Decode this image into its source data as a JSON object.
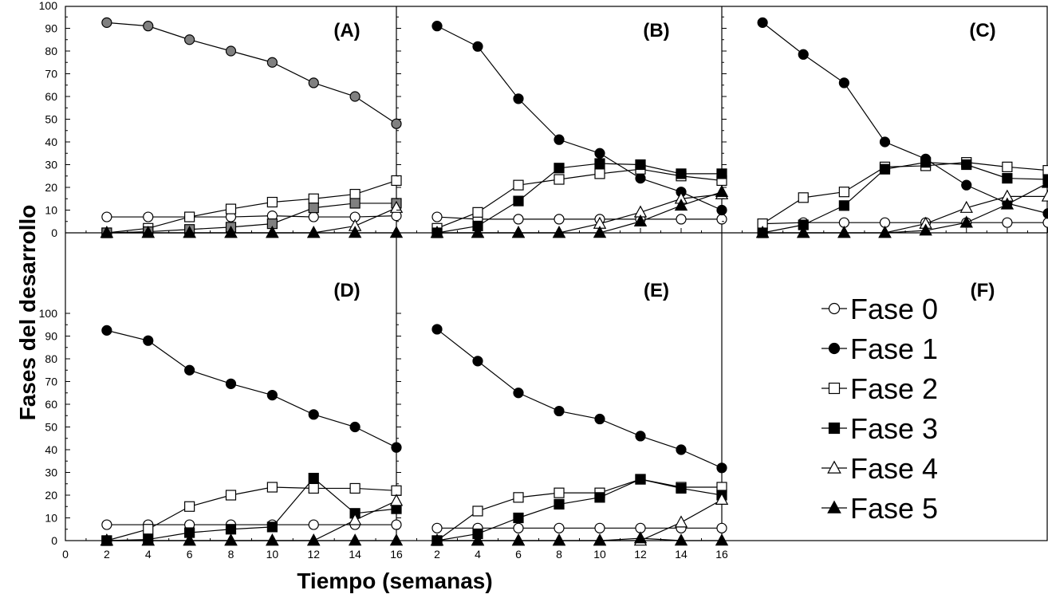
{
  "chart_data": {
    "type": "line",
    "title": "",
    "xlabel": "Tiempo (semanas)",
    "ylabel": "Fases del desarrollo",
    "xlim": [
      0,
      16
    ],
    "ylim": [
      0,
      100
    ],
    "x_ticks": [
      "0",
      "2",
      "4",
      "6",
      "8",
      "10",
      "12",
      "14",
      "16"
    ],
    "y_ticks": [
      "0",
      "10",
      "20",
      "30",
      "40",
      "50",
      "60",
      "70",
      "80",
      "90",
      "100"
    ],
    "x": [
      2,
      4,
      6,
      8,
      10,
      12,
      14,
      16
    ],
    "legend": [
      {
        "name": "Fase 0",
        "marker": "circle",
        "fill": "#ffffff"
      },
      {
        "name": "Fase 1",
        "marker": "circle",
        "fill": "#000000"
      },
      {
        "name": "Fase 2",
        "marker": "square",
        "fill": "#ffffff"
      },
      {
        "name": "Fase 3",
        "marker": "square",
        "fill": "#000000"
      },
      {
        "name": "Fase 4",
        "marker": "triangle",
        "fill": "#ffffff"
      },
      {
        "name": "Fase 5",
        "marker": "triangle",
        "fill": "#000000"
      }
    ],
    "legend_panel": "(F)",
    "panels": [
      {
        "label": "(A)",
        "series": [
          {
            "name": "Fase 0",
            "values": [
              7,
              7,
              7,
              7,
              7.5,
              7,
              7,
              7.5
            ]
          },
          {
            "name": "Fase 1",
            "values": [
              92.5,
              91,
              85,
              80,
              75,
              66,
              60,
              48
            ],
            "fill": "#808080"
          },
          {
            "name": "Fase 2",
            "values": [
              0,
              2,
              7,
              10.5,
              13.5,
              15,
              17,
              23
            ]
          },
          {
            "name": "Fase 3",
            "values": [
              0,
              0.5,
              1.5,
              2.5,
              4,
              11,
              13,
              13
            ],
            "fill": "#808080"
          },
          {
            "name": "Fase 4",
            "values": [
              0,
              0,
              0,
              0,
              0,
              0,
              3,
              11
            ]
          },
          {
            "name": "Fase 5",
            "values": [
              0,
              0,
              0,
              0,
              0,
              0,
              0,
              0
            ]
          }
        ]
      },
      {
        "label": "(B)",
        "series": [
          {
            "name": "Fase 0",
            "values": [
              7,
              6,
              6,
              6,
              6,
              6,
              6,
              6
            ]
          },
          {
            "name": "Fase 1",
            "values": [
              91,
              82,
              59,
              41,
              35,
              24,
              18,
              10
            ]
          },
          {
            "name": "Fase 2",
            "values": [
              2,
              9,
              21,
              23.5,
              26,
              28,
              25,
              23
            ]
          },
          {
            "name": "Fase 3",
            "values": [
              0,
              3,
              14,
              28.5,
              30.5,
              30,
              26,
              26
            ]
          },
          {
            "name": "Fase 4",
            "values": [
              0,
              0,
              0,
              0,
              4,
              9,
              15,
              17
            ]
          },
          {
            "name": "Fase 5",
            "values": [
              0,
              0,
              0,
              0,
              0,
              5,
              12,
              18
            ]
          }
        ]
      },
      {
        "label": "(C)",
        "series": [
          {
            "name": "Fase 0",
            "values": [
              4,
              4.5,
              4.5,
              4.5,
              4.5,
              4.5,
              4.5,
              4.5
            ]
          },
          {
            "name": "Fase 1",
            "values": [
              92.5,
              78.5,
              66,
              40,
              32.5,
              21,
              13,
              8.5
            ]
          },
          {
            "name": "Fase 2",
            "values": [
              4,
              15.5,
              18,
              29,
              29.5,
              31,
              29,
              27.5
            ]
          },
          {
            "name": "Fase 3",
            "values": [
              0,
              3.5,
              12,
              28,
              31,
              30,
              24,
              23.5
            ]
          },
          {
            "name": "Fase 4",
            "values": [
              0,
              0,
              0,
              0,
              4,
              11,
              16,
              16
            ]
          },
          {
            "name": "Fase 5",
            "values": [
              0,
              0,
              0,
              0,
              1,
              4.5,
              12.5,
              22
            ]
          }
        ]
      },
      {
        "label": "(D)",
        "series": [
          {
            "name": "Fase 0",
            "values": [
              7,
              7,
              7,
              7,
              7,
              7,
              7,
              7
            ]
          },
          {
            "name": "Fase 1",
            "values": [
              92.5,
              88,
              75,
              69,
              64,
              55.5,
              50,
              41
            ]
          },
          {
            "name": "Fase 2",
            "values": [
              0,
              5,
              15,
              20,
              23.5,
              23,
              23,
              22
            ]
          },
          {
            "name": "Fase 3",
            "values": [
              0,
              0.5,
              3.5,
              5,
              6,
              27.5,
              12,
              14
            ]
          },
          {
            "name": "Fase 4",
            "values": [
              0,
              0,
              0,
              0,
              0,
              0,
              9,
              17.5
            ]
          },
          {
            "name": "Fase 5",
            "values": [
              0,
              0,
              0,
              0,
              0,
              0,
              0,
              0
            ]
          }
        ]
      },
      {
        "label": "(E)",
        "series": [
          {
            "name": "Fase 0",
            "values": [
              5.5,
              5.5,
              5.5,
              5.5,
              5.5,
              5.5,
              5.5,
              5.5
            ]
          },
          {
            "name": "Fase 1",
            "values": [
              93,
              79,
              65,
              57,
              53.5,
              46,
              40,
              32
            ]
          },
          {
            "name": "Fase 2",
            "values": [
              0,
              13,
              19,
              21,
              21,
              27,
              23.5,
              23.5
            ]
          },
          {
            "name": "Fase 3",
            "values": [
              0,
              3,
              10,
              16,
              19,
              27,
              23,
              20
            ]
          },
          {
            "name": "Fase 4",
            "values": [
              0,
              0,
              0,
              0,
              0,
              0,
              8,
              18
            ]
          },
          {
            "name": "Fase 5",
            "values": [
              0,
              0,
              0,
              0,
              0,
              1,
              0,
              0
            ]
          }
        ]
      }
    ]
  }
}
